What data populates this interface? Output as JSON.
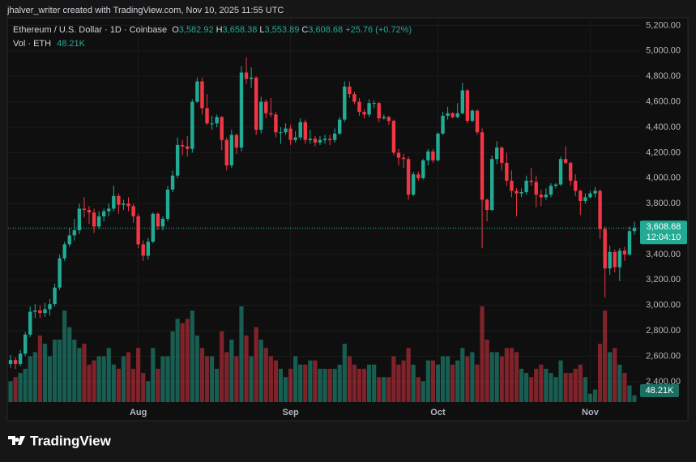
{
  "header": "jhalver_writer created with TradingView.com, Nov 10, 2025 11:55 UTC",
  "brand": "TradingView",
  "chart_data": {
    "type": "candlestick",
    "title": "Ethereum / U.S. Dollar · 1D · Coinbase",
    "legend_values": [
      {
        "key": "O",
        "value": "3,582.92"
      },
      {
        "key": "H",
        "value": "3,658.38"
      },
      {
        "key": "L",
        "value": "3,553.89"
      },
      {
        "key": "C",
        "value": "3,608.68"
      }
    ],
    "change": "+25.76 (+0.72%)",
    "last_price_label": "3,608.68",
    "countdown": "12:04:10",
    "up_color": "#22ab94",
    "down_color": "#f23645",
    "grid": true,
    "ylim": [
      2100,
      5260
    ],
    "yticks": [
      {
        "value": 2400,
        "label": "2,400.00"
      },
      {
        "value": 2600,
        "label": "2,600.00"
      },
      {
        "value": 2800,
        "label": "2,800.00"
      },
      {
        "value": 3000,
        "label": "3,000.00"
      },
      {
        "value": 3200,
        "label": "3,200.00"
      },
      {
        "value": 3400,
        "label": "3,400.00"
      },
      {
        "value": 3600,
        "label": "3,600.00"
      },
      {
        "value": 3800,
        "label": "3,800.00"
      },
      {
        "value": 4000,
        "label": "4,000.00"
      },
      {
        "value": 4200,
        "label": "4,200.00"
      },
      {
        "value": 4400,
        "label": "4,400.00"
      },
      {
        "value": 4600,
        "label": "4,600.00"
      },
      {
        "value": 4800,
        "label": "4,800.00"
      },
      {
        "value": 5000,
        "label": "5,000.00"
      },
      {
        "value": 5200,
        "label": "5,200.00"
      }
    ],
    "categories": [
      null,
      null,
      null,
      null,
      null,
      null,
      null,
      null,
      null,
      null,
      null,
      null,
      null,
      null,
      null,
      null,
      null,
      null,
      null,
      null,
      null,
      null,
      null,
      null,
      null,
      null,
      "Aug",
      null,
      null,
      null,
      null,
      null,
      null,
      null,
      null,
      null,
      null,
      null,
      null,
      null,
      null,
      null,
      null,
      null,
      null,
      null,
      null,
      null,
      null,
      null,
      null,
      null,
      null,
      null,
      null,
      null,
      null,
      "Sep",
      null,
      null,
      null,
      null,
      null,
      null,
      null,
      null,
      null,
      null,
      null,
      null,
      null,
      null,
      null,
      null,
      null,
      null,
      null,
      null,
      null,
      null,
      null,
      null,
      null,
      null,
      null,
      null,
      null,
      "Oct",
      null,
      null,
      null,
      null,
      null,
      null,
      null,
      null,
      null,
      null,
      null,
      null,
      null,
      null,
      null,
      null,
      null,
      null,
      null,
      null,
      null,
      null,
      null,
      null,
      null,
      null,
      null,
      null,
      null,
      null,
      "Nov",
      null,
      null,
      null,
      null,
      null,
      null,
      null,
      null,
      null
    ],
    "candles": [
      [
        2540,
        2610,
        2510,
        2570
      ],
      [
        2570,
        2590,
        2500,
        2540
      ],
      [
        2540,
        2650,
        2520,
        2620
      ],
      [
        2620,
        2790,
        2600,
        2770
      ],
      [
        2770,
        2990,
        2750,
        2950
      ],
      [
        2950,
        3010,
        2900,
        2960
      ],
      [
        2960,
        3000,
        2900,
        2940
      ],
      [
        2940,
        3020,
        2910,
        2970
      ],
      [
        2970,
        3050,
        2920,
        3010
      ],
      [
        3010,
        3170,
        2990,
        3140
      ],
      [
        3140,
        3400,
        3120,
        3370
      ],
      [
        3370,
        3500,
        3350,
        3480
      ],
      [
        3480,
        3610,
        3460,
        3550
      ],
      [
        3550,
        3680,
        3510,
        3590
      ],
      [
        3590,
        3800,
        3560,
        3760
      ],
      [
        3760,
        3850,
        3690,
        3750
      ],
      [
        3750,
        3780,
        3640,
        3730
      ],
      [
        3730,
        3760,
        3570,
        3620
      ],
      [
        3620,
        3740,
        3600,
        3700
      ],
      [
        3700,
        3760,
        3660,
        3740
      ],
      [
        3740,
        3800,
        3700,
        3760
      ],
      [
        3760,
        3940,
        3740,
        3860
      ],
      [
        3860,
        3880,
        3720,
        3790
      ],
      [
        3790,
        3830,
        3750,
        3800
      ],
      [
        3800,
        3850,
        3740,
        3780
      ],
      [
        3780,
        3800,
        3650,
        3700
      ],
      [
        3700,
        3720,
        3450,
        3480
      ],
      [
        3480,
        3510,
        3350,
        3390
      ],
      [
        3390,
        3530,
        3360,
        3500
      ],
      [
        3500,
        3730,
        3490,
        3720
      ],
      [
        3720,
        3730,
        3590,
        3620
      ],
      [
        3620,
        3700,
        3590,
        3680
      ],
      [
        3680,
        3940,
        3660,
        3910
      ],
      [
        3910,
        4060,
        3890,
        4020
      ],
      [
        4020,
        4320,
        4000,
        4260
      ],
      [
        4260,
        4300,
        4180,
        4250
      ],
      [
        4250,
        4330,
        4170,
        4230
      ],
      [
        4230,
        4620,
        4200,
        4600
      ],
      [
        4600,
        4790,
        4590,
        4760
      ],
      [
        4760,
        4790,
        4500,
        4550
      ],
      [
        4550,
        4660,
        4420,
        4430
      ],
      [
        4430,
        4490,
        4380,
        4430
      ],
      [
        4430,
        4500,
        4400,
        4480
      ],
      [
        4480,
        4490,
        4220,
        4300
      ],
      [
        4300,
        4320,
        4060,
        4100
      ],
      [
        4100,
        4380,
        4080,
        4340
      ],
      [
        4340,
        4350,
        4190,
        4240
      ],
      [
        4240,
        4880,
        4210,
        4830
      ],
      [
        4830,
        4950,
        4740,
        4780
      ],
      [
        4780,
        4870,
        4710,
        4790
      ],
      [
        4790,
        4800,
        4340,
        4380
      ],
      [
        4380,
        4640,
        4350,
        4600
      ],
      [
        4600,
        4620,
        4470,
        4510
      ],
      [
        4510,
        4630,
        4480,
        4500
      ],
      [
        4500,
        4520,
        4320,
        4360
      ],
      [
        4360,
        4400,
        4270,
        4360
      ],
      [
        4360,
        4430,
        4340,
        4390
      ],
      [
        4390,
        4420,
        4260,
        4300
      ],
      [
        4300,
        4370,
        4280,
        4320
      ],
      [
        4320,
        4470,
        4300,
        4440
      ],
      [
        4440,
        4460,
        4270,
        4300
      ],
      [
        4300,
        4380,
        4270,
        4310
      ],
      [
        4310,
        4330,
        4250,
        4280
      ],
      [
        4280,
        4330,
        4260,
        4300
      ],
      [
        4300,
        4340,
        4270,
        4310
      ],
      [
        4310,
        4340,
        4260,
        4300
      ],
      [
        4300,
        4390,
        4280,
        4350
      ],
      [
        4350,
        4480,
        4340,
        4460
      ],
      [
        4460,
        4760,
        4440,
        4720
      ],
      [
        4720,
        4760,
        4630,
        4660
      ],
      [
        4660,
        4680,
        4580,
        4600
      ],
      [
        4600,
        4630,
        4490,
        4520
      ],
      [
        4520,
        4540,
        4470,
        4500
      ],
      [
        4500,
        4620,
        4480,
        4590
      ],
      [
        4590,
        4610,
        4550,
        4590
      ],
      [
        4590,
        4600,
        4440,
        4470
      ],
      [
        4470,
        4500,
        4460,
        4480
      ],
      [
        4480,
        4490,
        4420,
        4450
      ],
      [
        4450,
        4460,
        4180,
        4200
      ],
      [
        4200,
        4230,
        4100,
        4160
      ],
      [
        4160,
        4190,
        4080,
        4150
      ],
      [
        4150,
        4170,
        3830,
        3870
      ],
      [
        3870,
        4050,
        3860,
        4030
      ],
      [
        4030,
        4050,
        3980,
        4000
      ],
      [
        4000,
        4150,
        3990,
        4140
      ],
      [
        4140,
        4230,
        4100,
        4210
      ],
      [
        4210,
        4230,
        4120,
        4140
      ],
      [
        4140,
        4360,
        4130,
        4350
      ],
      [
        4350,
        4520,
        4340,
        4490
      ],
      [
        4490,
        4560,
        4460,
        4510
      ],
      [
        4510,
        4520,
        4470,
        4480
      ],
      [
        4480,
        4590,
        4470,
        4510
      ],
      [
        4510,
        4750,
        4500,
        4690
      ],
      [
        4690,
        4700,
        4430,
        4450
      ],
      [
        4450,
        4540,
        4440,
        4530
      ],
      [
        4530,
        4540,
        4340,
        4360
      ],
      [
        4360,
        4390,
        3450,
        3830
      ],
      [
        3830,
        3840,
        3660,
        3750
      ],
      [
        3750,
        4180,
        3740,
        4150
      ],
      [
        4150,
        4290,
        4110,
        4240
      ],
      [
        4240,
        4250,
        4060,
        4120
      ],
      [
        4120,
        4200,
        3940,
        3980
      ],
      [
        3980,
        4060,
        3850,
        3900
      ],
      [
        3900,
        3920,
        3700,
        3880
      ],
      [
        3880,
        3920,
        3850,
        3890
      ],
      [
        3890,
        4020,
        3870,
        3980
      ],
      [
        3980,
        4080,
        3940,
        3970
      ],
      [
        3970,
        4020,
        3770,
        3870
      ],
      [
        3870,
        3910,
        3780,
        3850
      ],
      [
        3850,
        3920,
        3830,
        3870
      ],
      [
        3870,
        3960,
        3850,
        3940
      ],
      [
        3940,
        3960,
        3920,
        3950
      ],
      [
        3950,
        4170,
        3940,
        4150
      ],
      [
        4150,
        4250,
        4110,
        4120
      ],
      [
        4120,
        4130,
        3940,
        3980
      ],
      [
        3980,
        4030,
        3860,
        3900
      ],
      [
        3900,
        3910,
        3710,
        3820
      ],
      [
        3820,
        3880,
        3800,
        3850
      ],
      [
        3850,
        3900,
        3840,
        3880
      ],
      [
        3880,
        3930,
        3850,
        3900
      ],
      [
        3900,
        3910,
        3520,
        3600
      ],
      [
        3600,
        3620,
        3060,
        3290
      ],
      [
        3290,
        3470,
        3240,
        3420
      ],
      [
        3420,
        3440,
        3260,
        3300
      ],
      [
        3300,
        3450,
        3190,
        3430
      ],
      [
        3430,
        3460,
        3350,
        3400
      ],
      [
        3400,
        3620,
        3390,
        3582.92
      ],
      [
        3582.92,
        3658.38,
        3553.89,
        3608.68
      ]
    ],
    "volume": {
      "label": "Vol · ETH",
      "last_value_label": "48.21K",
      "values": [
        150,
        180,
        210,
        240,
        330,
        360,
        480,
        420,
        330,
        450,
        450,
        660,
        540,
        450,
        390,
        420,
        270,
        300,
        330,
        330,
        390,
        270,
        240,
        330,
        360,
        240,
        390,
        210,
        150,
        390,
        240,
        330,
        330,
        510,
        600,
        570,
        600,
        660,
        480,
        390,
        330,
        330,
        240,
        510,
        360,
        450,
        330,
        690,
        480,
        330,
        540,
        450,
        390,
        330,
        300,
        240,
        180,
        240,
        330,
        270,
        270,
        300,
        300,
        240,
        240,
        240,
        240,
        270,
        420,
        330,
        270,
        240,
        240,
        270,
        270,
        180,
        180,
        180,
        330,
        270,
        300,
        390,
        270,
        180,
        150,
        300,
        300,
        270,
        330,
        330,
        270,
        300,
        390,
        330,
        360,
        270,
        690,
        450,
        360,
        360,
        330,
        390,
        390,
        360,
        240,
        210,
        180,
        240,
        270,
        240,
        210,
        180,
        300,
        210,
        210,
        240,
        270,
        180,
        60,
        90,
        420,
        660,
        360,
        390,
        270,
        210,
        120,
        48.21
      ]
    }
  }
}
